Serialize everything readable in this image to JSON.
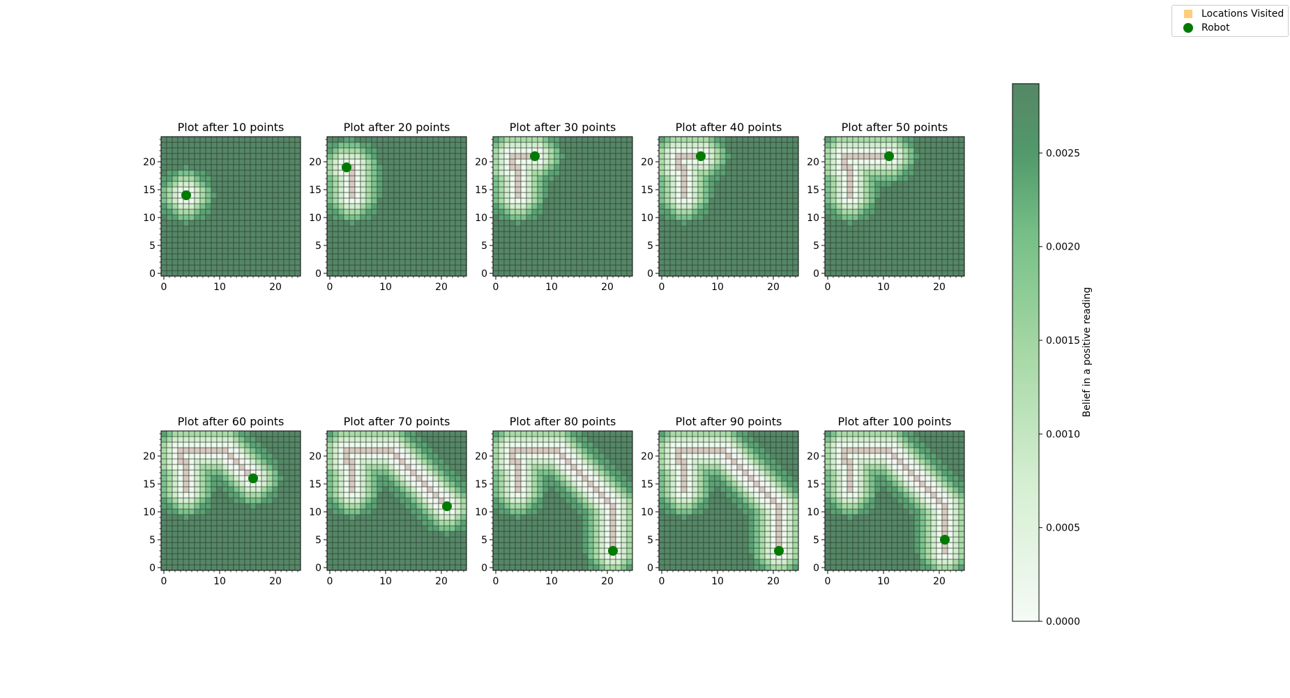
{
  "legend": {
    "items": [
      {
        "label": "Locations Visited",
        "color": "#fdcf7a",
        "marker": "square"
      },
      {
        "label": "Robot",
        "color": "#007a00",
        "marker": "circle"
      }
    ]
  },
  "colorbar": {
    "label": "Belief in a positive reading",
    "ticks": [
      "0.0000",
      "0.0005",
      "0.0010",
      "0.0015",
      "0.0020",
      "0.0025"
    ],
    "tick_values": [
      0,
      0.0005,
      0.001,
      0.0015,
      0.002,
      0.0025
    ],
    "range": [
      0,
      0.00287
    ],
    "colormap": "Greens (alpha 0.65)"
  },
  "colors": {
    "visited_path": "#d9c9c1",
    "robot": "#007a00",
    "grid_line": "#2b3d30"
  },
  "chart_data": [
    {
      "type": "heatmap",
      "title": "Plot after 10 points",
      "grid_size": 25,
      "xlim": [
        0,
        24
      ],
      "ylim": [
        0,
        24
      ],
      "xticks": [
        0,
        10,
        20
      ],
      "yticks": [
        0,
        5,
        10,
        15,
        20
      ],
      "robot": [
        4,
        14
      ],
      "path": [
        [
          4,
          14
        ]
      ]
    },
    {
      "type": "heatmap",
      "title": "Plot after 20 points",
      "grid_size": 25,
      "xlim": [
        0,
        24
      ],
      "ylim": [
        0,
        24
      ],
      "xticks": [
        0,
        10,
        20
      ],
      "yticks": [
        0,
        5,
        10,
        15,
        20
      ],
      "robot": [
        3,
        19
      ],
      "path": [
        [
          4,
          14
        ],
        [
          4,
          19
        ],
        [
          3,
          19
        ]
      ]
    },
    {
      "type": "heatmap",
      "title": "Plot after 30 points",
      "grid_size": 25,
      "xlim": [
        0,
        24
      ],
      "ylim": [
        0,
        24
      ],
      "xticks": [
        0,
        10,
        20
      ],
      "yticks": [
        0,
        5,
        10,
        15,
        20
      ],
      "robot": [
        7,
        21
      ],
      "path": [
        [
          4,
          14
        ],
        [
          4,
          19
        ],
        [
          3,
          19
        ],
        [
          3,
          21
        ],
        [
          7,
          21
        ]
      ]
    },
    {
      "type": "heatmap",
      "title": "Plot after 40 points",
      "grid_size": 25,
      "xlim": [
        0,
        24
      ],
      "ylim": [
        0,
        24
      ],
      "xticks": [
        0,
        10,
        20
      ],
      "yticks": [
        0,
        5,
        10,
        15,
        20
      ],
      "robot": [
        7,
        21
      ],
      "path": [
        [
          4,
          14
        ],
        [
          4,
          19
        ],
        [
          3,
          19
        ],
        [
          3,
          21
        ],
        [
          7,
          21
        ]
      ]
    },
    {
      "type": "heatmap",
      "title": "Plot after 50 points",
      "grid_size": 25,
      "xlim": [
        0,
        24
      ],
      "ylim": [
        0,
        24
      ],
      "xticks": [
        0,
        10,
        20
      ],
      "yticks": [
        0,
        5,
        10,
        15,
        20
      ],
      "robot": [
        11,
        21
      ],
      "path": [
        [
          4,
          14
        ],
        [
          4,
          19
        ],
        [
          3,
          19
        ],
        [
          3,
          21
        ],
        [
          11,
          21
        ]
      ]
    },
    {
      "type": "heatmap",
      "title": "Plot after 60 points",
      "grid_size": 25,
      "xlim": [
        0,
        24
      ],
      "ylim": [
        0,
        24
      ],
      "xticks": [
        0,
        10,
        20
      ],
      "yticks": [
        0,
        5,
        10,
        15,
        20
      ],
      "robot": [
        16,
        16
      ],
      "path": [
        [
          4,
          14
        ],
        [
          4,
          19
        ],
        [
          3,
          19
        ],
        [
          3,
          21
        ],
        [
          11,
          21
        ],
        [
          16,
          16
        ]
      ]
    },
    {
      "type": "heatmap",
      "title": "Plot after 70 points",
      "grid_size": 25,
      "xlim": [
        0,
        24
      ],
      "ylim": [
        0,
        24
      ],
      "xticks": [
        0,
        10,
        20
      ],
      "yticks": [
        0,
        5,
        10,
        15,
        20
      ],
      "robot": [
        21,
        11
      ],
      "path": [
        [
          4,
          14
        ],
        [
          4,
          19
        ],
        [
          3,
          19
        ],
        [
          3,
          21
        ],
        [
          11,
          21
        ],
        [
          21,
          11
        ]
      ]
    },
    {
      "type": "heatmap",
      "title": "Plot after 80 points",
      "grid_size": 25,
      "xlim": [
        0,
        24
      ],
      "ylim": [
        0,
        24
      ],
      "xticks": [
        0,
        10,
        20
      ],
      "yticks": [
        0,
        5,
        10,
        15,
        20
      ],
      "robot": [
        21,
        3
      ],
      "path": [
        [
          4,
          14
        ],
        [
          4,
          19
        ],
        [
          3,
          19
        ],
        [
          3,
          21
        ],
        [
          11,
          21
        ],
        [
          21,
          11
        ],
        [
          21,
          3
        ]
      ]
    },
    {
      "type": "heatmap",
      "title": "Plot after 90 points",
      "grid_size": 25,
      "xlim": [
        0,
        24
      ],
      "ylim": [
        0,
        24
      ],
      "xticks": [
        0,
        10,
        20
      ],
      "yticks": [
        0,
        5,
        10,
        15,
        20
      ],
      "robot": [
        21,
        3
      ],
      "path": [
        [
          4,
          14
        ],
        [
          4,
          19
        ],
        [
          3,
          19
        ],
        [
          3,
          21
        ],
        [
          11,
          21
        ],
        [
          21,
          11
        ],
        [
          21,
          3
        ]
      ]
    },
    {
      "type": "heatmap",
      "title": "Plot after 100 points",
      "grid_size": 25,
      "xlim": [
        0,
        24
      ],
      "ylim": [
        0,
        24
      ],
      "xticks": [
        0,
        10,
        20
      ],
      "yticks": [
        0,
        5,
        10,
        15,
        20
      ],
      "robot": [
        21,
        5
      ],
      "path": [
        [
          4,
          14
        ],
        [
          4,
          19
        ],
        [
          3,
          19
        ],
        [
          3,
          21
        ],
        [
          11,
          21
        ],
        [
          21,
          11
        ],
        [
          21,
          3
        ],
        [
          21,
          5
        ]
      ]
    }
  ]
}
